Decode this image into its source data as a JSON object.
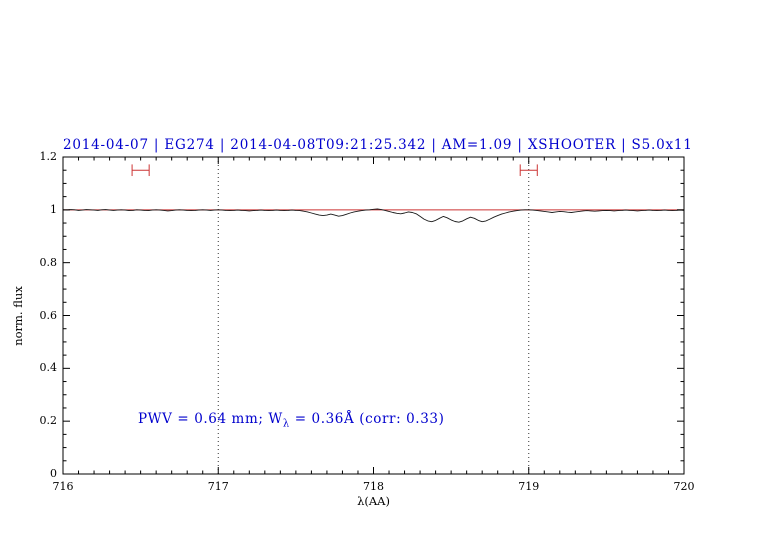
{
  "header": {
    "title": "2014-04-07 | EG274 | 2014-04-08T09:21:25.342 | AM=1.09 | XSHOOTER | S5.0x11"
  },
  "annotation": {
    "part1": "PWV = 0.64 mm; W",
    "sub": "λ",
    "part2": " = 0.36Å (corr: 0.33)"
  },
  "colors": {
    "title": "#0000cd",
    "annotation": "#0000cd",
    "spectrum": "#1a1a1a",
    "continuum": "#cc3333",
    "marker": "#cc3333",
    "dotted": "#333333",
    "axis": "#000000"
  },
  "chart_data": {
    "type": "line",
    "title": "2014-04-07 | EG274 | 2014-04-08T09:21:25.342 | AM=1.09 | XSHOOTER | S5.0x11",
    "xlabel": "λ(AA)",
    "ylabel": "norm. flux",
    "xlim": [
      716,
      720
    ],
    "ylim": [
      0,
      1.2
    ],
    "grid": false,
    "legend": "none",
    "x_ticks": {
      "values": [
        716,
        717,
        718,
        719,
        720
      ],
      "labels": [
        "716",
        "717",
        "718",
        "719",
        "720"
      ],
      "minor_step": 0.1
    },
    "y_ticks": {
      "values": [
        0,
        0.2,
        0.4,
        0.6,
        0.8,
        1,
        1.2
      ],
      "labels": [
        "0",
        "0.2",
        "0.4",
        "0.6",
        "0.8",
        "1",
        "1.2"
      ],
      "minor_step": 0.05
    },
    "dotted_vlines": [
      717,
      719
    ],
    "continuum_y": 1.0,
    "range_markers": [
      {
        "x": 716.5,
        "y": 1.15,
        "halfwidth": 0.055,
        "cap": 0.022
      },
      {
        "x": 719.0,
        "y": 1.15,
        "halfwidth": 0.055,
        "cap": 0.022
      }
    ],
    "series": [
      {
        "name": "spectrum",
        "x_start": 716.0,
        "x_step": 0.025,
        "y": [
          1.0,
          0.999,
          1.001,
          1.0,
          0.998,
          0.999,
          1.001,
          1.0,
          0.999,
          0.998,
          1.0,
          1.001,
          0.999,
          0.998,
          0.999,
          1.0,
          0.999,
          0.997,
          0.998,
          1.0,
          0.999,
          0.998,
          0.997,
          0.999,
          1.0,
          0.999,
          0.998,
          0.996,
          0.997,
          0.999,
          1.0,
          0.999,
          0.998,
          0.997,
          0.998,
          0.999,
          1.0,
          0.999,
          0.998,
          0.999,
          1.0,
          0.999,
          0.998,
          0.997,
          0.998,
          0.999,
          0.998,
          0.997,
          0.996,
          0.997,
          0.998,
          0.999,
          0.998,
          0.997,
          0.998,
          0.999,
          0.998,
          0.997,
          0.998,
          0.999,
          0.998,
          0.997,
          0.995,
          0.992,
          0.988,
          0.984,
          0.98,
          0.978,
          0.98,
          0.984,
          0.98,
          0.976,
          0.978,
          0.983,
          0.988,
          0.992,
          0.995,
          0.997,
          0.999,
          1.0,
          1.002,
          1.003,
          1.001,
          0.998,
          0.994,
          0.99,
          0.987,
          0.985,
          0.988,
          0.992,
          0.99,
          0.985,
          0.975,
          0.965,
          0.958,
          0.955,
          0.96,
          0.968,
          0.975,
          0.97,
          0.962,
          0.956,
          0.953,
          0.958,
          0.966,
          0.972,
          0.968,
          0.96,
          0.955,
          0.958,
          0.965,
          0.972,
          0.978,
          0.984,
          0.988,
          0.992,
          0.995,
          0.997,
          0.999,
          1.0,
          1.0,
          0.999,
          0.998,
          0.996,
          0.994,
          0.992,
          0.99,
          0.992,
          0.994,
          0.993,
          0.991,
          0.99,
          0.992,
          0.994,
          0.996,
          0.997,
          0.996,
          0.995,
          0.996,
          0.997,
          0.998,
          0.997,
          0.996,
          0.997,
          0.998,
          0.999,
          0.998,
          0.997,
          0.996,
          0.997,
          0.998,
          0.999,
          0.998,
          0.997,
          0.998,
          0.999,
          0.998,
          0.997,
          0.998,
          0.999,
          0.998
        ]
      }
    ]
  }
}
